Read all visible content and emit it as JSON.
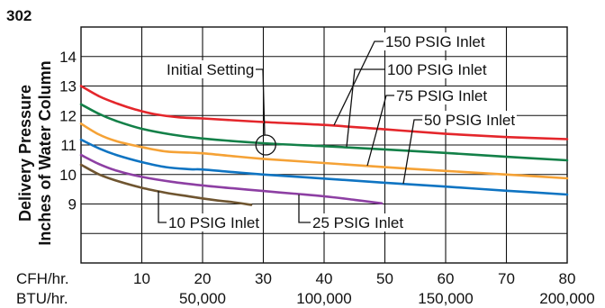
{
  "header": {
    "number": "302"
  },
  "chart_data": {
    "type": "line",
    "ylabel": [
      "Delivery Pressure",
      "Inches of Water Column"
    ],
    "xlabel": "CFH/hr.",
    "x2label": "BTU/hr.",
    "xlim": [
      0,
      80
    ],
    "ylim": [
      7,
      15
    ],
    "grid": true,
    "xticks": [
      10,
      20,
      30,
      40,
      50,
      60,
      70,
      80
    ],
    "yticks": [
      14,
      13,
      12,
      11,
      10,
      9
    ],
    "x2ticks": [
      {
        "at_cfh": 20,
        "label": "50,000"
      },
      {
        "at_cfh": 40,
        "label": "100,000"
      },
      {
        "at_cfh": 60,
        "label": "150,000"
      },
      {
        "at_cfh": 80,
        "label": "200,000"
      }
    ],
    "series": [
      {
        "name": "150 PSIG Inlet",
        "color": "#e4262b",
        "x": [
          0,
          3,
          6,
          9,
          12,
          16,
          20,
          30,
          40,
          50,
          60,
          70,
          80
        ],
        "y": [
          13.0,
          12.65,
          12.4,
          12.2,
          12.05,
          11.94,
          11.9,
          11.78,
          11.68,
          11.53,
          11.38,
          11.27,
          11.2
        ]
      },
      {
        "name": "100 PSIG Inlet",
        "color": "#138048",
        "x": [
          0,
          3,
          6,
          10,
          15,
          20,
          30,
          40,
          50,
          60,
          70,
          80
        ],
        "y": [
          12.38,
          12.05,
          11.8,
          11.55,
          11.35,
          11.22,
          11.06,
          10.96,
          10.85,
          10.73,
          10.6,
          10.48
        ]
      },
      {
        "name": "75 PSIG Inlet",
        "color": "#f5a236",
        "x": [
          0,
          3,
          6,
          10,
          14,
          18,
          20,
          25,
          30,
          40,
          50,
          60,
          70,
          80
        ],
        "y": [
          11.72,
          11.35,
          11.12,
          10.93,
          10.78,
          10.74,
          10.72,
          10.62,
          10.53,
          10.39,
          10.25,
          10.12,
          10.0,
          9.87
        ]
      },
      {
        "name": "50 PSIG Inlet",
        "color": "#0f74c2",
        "x": [
          0,
          3,
          6,
          10,
          14,
          18,
          20,
          25,
          30,
          40,
          50,
          60,
          70,
          80
        ],
        "y": [
          11.18,
          10.88,
          10.65,
          10.42,
          10.25,
          10.18,
          10.17,
          10.08,
          10.0,
          9.86,
          9.72,
          9.59,
          9.45,
          9.32
        ]
      },
      {
        "name": "25 PSIG Inlet",
        "color": "#8d3fa3",
        "x": [
          0,
          3,
          6,
          10,
          15,
          20,
          25,
          30,
          35,
          40,
          45,
          49.5
        ],
        "y": [
          10.66,
          10.35,
          10.12,
          9.92,
          9.75,
          9.63,
          9.53,
          9.44,
          9.35,
          9.26,
          9.14,
          9.02
        ]
      },
      {
        "name": "10 PSIG Inlet",
        "color": "#6f5530",
        "x": [
          0,
          3,
          6,
          10,
          14,
          18,
          22,
          25,
          28
        ],
        "y": [
          10.33,
          10.0,
          9.78,
          9.55,
          9.38,
          9.25,
          9.13,
          9.06,
          8.97
        ]
      }
    ],
    "annotations": [
      {
        "text": "Initial Setting",
        "x": 30.4,
        "y": 11.0
      }
    ]
  }
}
